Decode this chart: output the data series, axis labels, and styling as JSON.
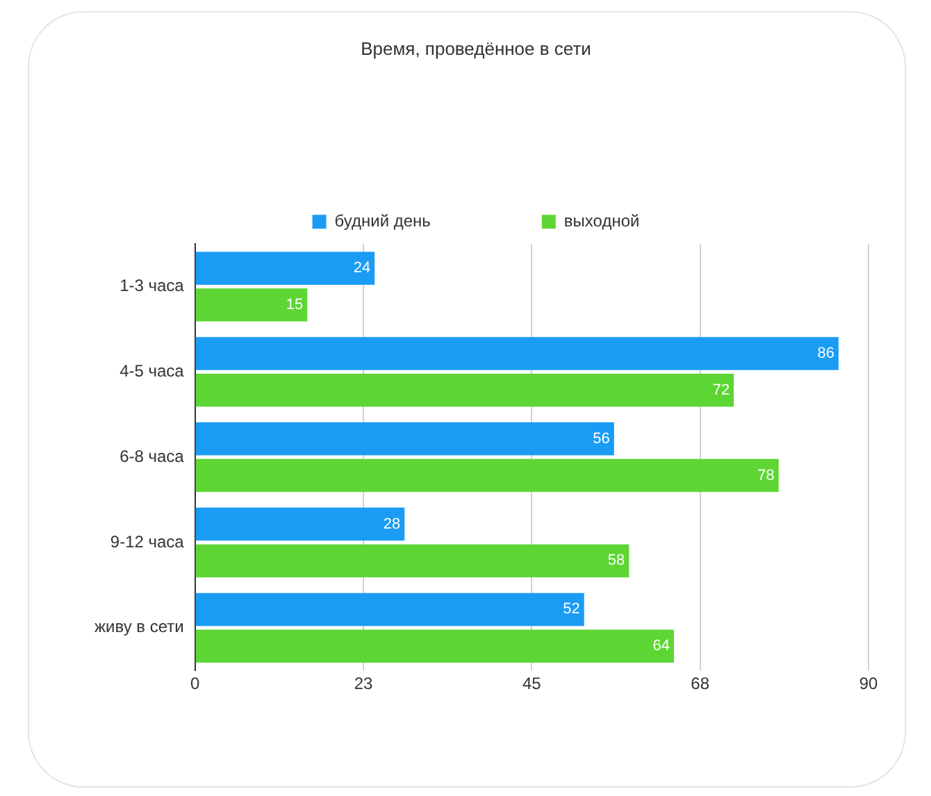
{
  "chart_data": {
    "type": "bar",
    "orientation": "horizontal",
    "title": "Время, проведённое в сети",
    "categories": [
      "1-3 часа",
      "4-5 часа",
      "6-8 часа",
      "9-12 часа",
      "живу в сети"
    ],
    "series": [
      {
        "name": "будний день",
        "color": "#1a9cf5",
        "values": [
          24,
          86,
          56,
          28,
          52
        ]
      },
      {
        "name": "выходной",
        "color": "#5dd633",
        "values": [
          15,
          72,
          78,
          58,
          64
        ]
      }
    ],
    "xlim": [
      0,
      90
    ],
    "xticks": [
      0,
      {
        "value": 22.5,
        "label": "23"
      },
      45,
      {
        "value": 67.5,
        "label": "68"
      },
      90
    ],
    "grid": "x",
    "legend": "top",
    "data_labels": true
  }
}
